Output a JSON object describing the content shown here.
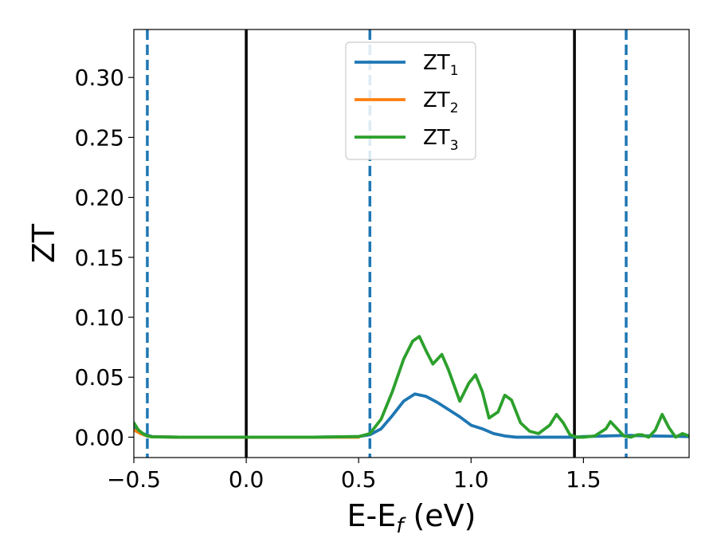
{
  "chart_data": {
    "type": "line",
    "xlabel": "E-E",
    "xlabel_sub": "f",
    "xlabel_unit": " (eV)",
    "ylabel": "ZT",
    "xlim": [
      -0.5,
      1.97
    ],
    "ylim": [
      -0.017,
      0.34
    ],
    "xticks": [
      -0.5,
      0.0,
      0.5,
      1.0,
      1.5
    ],
    "xtick_labels": [
      "−0.5",
      "0.0",
      "0.5",
      "1.0",
      "1.5"
    ],
    "yticks": [
      0.0,
      0.05,
      0.1,
      0.15,
      0.2,
      0.25,
      0.3
    ],
    "ytick_labels": [
      "0.00",
      "0.05",
      "0.10",
      "0.15",
      "0.20",
      "0.25",
      "0.30"
    ],
    "grid": false,
    "legend_position": "top-center",
    "vertical_lines": [
      {
        "x": -0.44,
        "style": "dashed",
        "color": "#1f77b4"
      },
      {
        "x": 0.0,
        "style": "solid",
        "color": "#000000"
      },
      {
        "x": 0.55,
        "style": "dashed",
        "color": "#1f77b4"
      },
      {
        "x": 1.46,
        "style": "solid",
        "color": "#000000"
      },
      {
        "x": 1.69,
        "style": "dashed",
        "color": "#1f77b4"
      }
    ],
    "series": [
      {
        "name": "ZT",
        "sub": "1",
        "color": "#1f77b4",
        "x": [
          -0.5,
          -0.46,
          -0.42,
          -0.3,
          0.0,
          0.3,
          0.5,
          0.55,
          0.6,
          0.65,
          0.7,
          0.75,
          0.8,
          0.85,
          0.9,
          0.95,
          1.0,
          1.05,
          1.1,
          1.15,
          1.2,
          1.3,
          1.4,
          1.46,
          1.5,
          1.6,
          1.7,
          1.8,
          1.9,
          1.97
        ],
        "y": [
          0.008,
          0.003,
          0.0005,
          0.0,
          0.0,
          0.0,
          0.0005,
          0.002,
          0.007,
          0.018,
          0.03,
          0.036,
          0.034,
          0.029,
          0.023,
          0.017,
          0.01,
          0.007,
          0.003,
          0.001,
          0.0,
          0.0,
          0.0,
          0.0,
          0.0005,
          0.001,
          0.0015,
          0.001,
          0.0008,
          0.0005
        ]
      },
      {
        "name": "ZT",
        "sub": "2",
        "color": "#ff7f0e",
        "x": [
          -0.5,
          -0.47,
          -0.44,
          -0.42,
          -0.3,
          0.0,
          0.3,
          0.5
        ],
        "y": [
          0.006,
          0.003,
          0.001,
          0.0003,
          0.0,
          0.0,
          0.0,
          0.0
        ]
      },
      {
        "name": "ZT",
        "sub": "3",
        "color": "#2ca02c",
        "x": [
          -0.5,
          -0.48,
          -0.46,
          -0.44,
          -0.42,
          -0.3,
          0.0,
          0.3,
          0.5,
          0.55,
          0.6,
          0.65,
          0.7,
          0.74,
          0.77,
          0.8,
          0.83,
          0.87,
          0.9,
          0.95,
          0.99,
          1.02,
          1.05,
          1.08,
          1.12,
          1.15,
          1.18,
          1.22,
          1.26,
          1.3,
          1.35,
          1.38,
          1.41,
          1.44,
          1.47,
          1.5,
          1.55,
          1.6,
          1.62,
          1.65,
          1.68,
          1.71,
          1.74,
          1.76,
          1.79,
          1.82,
          1.85,
          1.88,
          1.91,
          1.94,
          1.97
        ],
        "y": [
          0.012,
          0.006,
          0.003,
          0.001,
          0.0003,
          0.0,
          0.0,
          0.0,
          0.0005,
          0.003,
          0.015,
          0.038,
          0.065,
          0.08,
          0.084,
          0.072,
          0.061,
          0.069,
          0.056,
          0.03,
          0.045,
          0.052,
          0.038,
          0.016,
          0.021,
          0.035,
          0.031,
          0.012,
          0.005,
          0.003,
          0.01,
          0.019,
          0.012,
          0.002,
          0.0,
          0.0,
          0.001,
          0.007,
          0.013,
          0.007,
          0.001,
          0.0,
          0.002,
          0.002,
          0.0,
          0.006,
          0.019,
          0.008,
          0.0,
          0.003,
          0.001
        ]
      }
    ]
  }
}
